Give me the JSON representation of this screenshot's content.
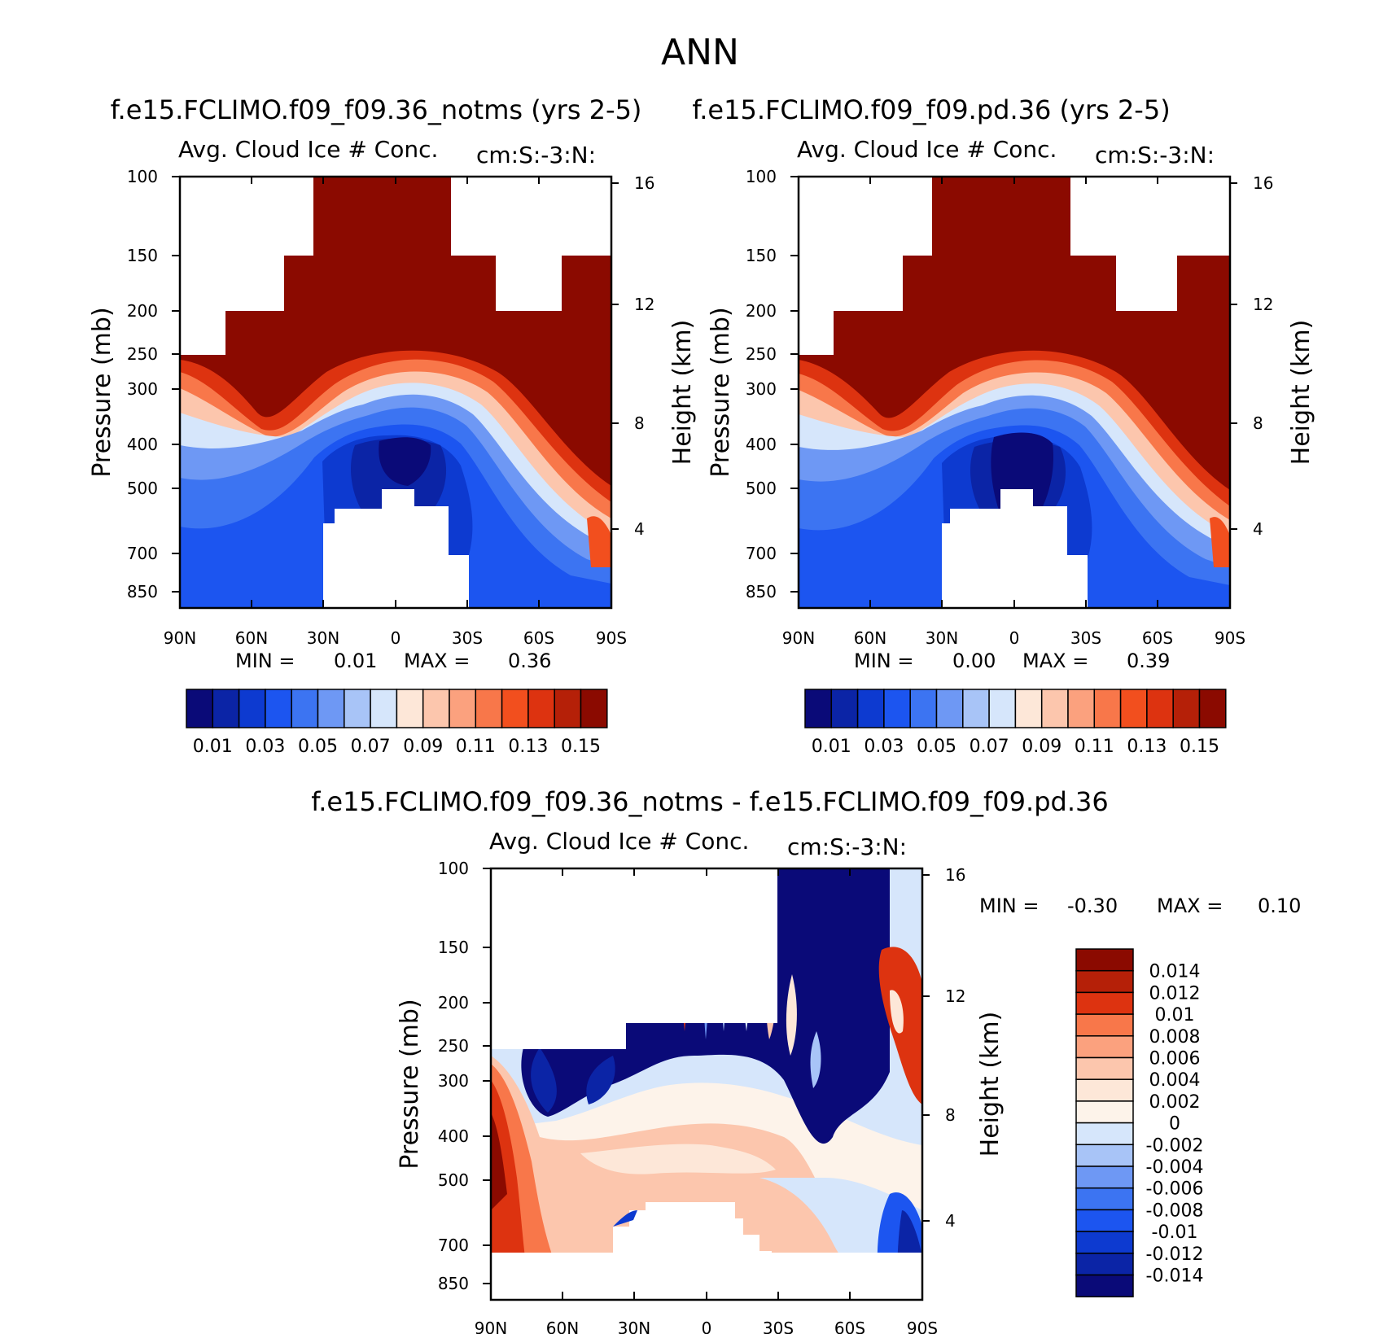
{
  "figure_title": "ANN",
  "chart_data": [
    {
      "type": "heatmap",
      "title": "f.e15.FCLIMO.f09_f09.36_notms (yrs 2-5)",
      "subtitle": "Avg. Cloud Ice # Conc.",
      "units": "cm:S:-3:N:",
      "ylabel": "Pressure (mb)",
      "ylabel_right": "Height (km)",
      "x_ticks": [
        "90N",
        "60N",
        "30N",
        "0",
        "30S",
        "60S",
        "90S"
      ],
      "y_ticks": [
        "100",
        "150",
        "200",
        "250",
        "300",
        "400",
        "500",
        "700",
        "850"
      ],
      "y_right_ticks": [
        "16",
        "12",
        "8",
        "4"
      ],
      "min_label": "MIN =",
      "min": "0.01",
      "max_label": "MAX =",
      "max": "0.36",
      "colorbar_labels": [
        "0.01",
        "0.03",
        "0.05",
        "0.07",
        "0.09",
        "0.11",
        "0.13",
        "0.15"
      ],
      "colors": [
        "#0a0a78",
        "#0b24a6",
        "#0d3ad0",
        "#1c55f0",
        "#3c74f2",
        "#6e98f4",
        "#a8c4f7",
        "#d6e6fb",
        "#fde7d8",
        "#fcc6ad",
        "#fba17e",
        "#f8774a",
        "#f24f1e",
        "#dd3310",
        "#b52008",
        "#8b0a00"
      ]
    },
    {
      "type": "heatmap",
      "title": "f.e15.FCLIMO.f09_f09.pd.36 (yrs 2-5)",
      "subtitle": "Avg. Cloud Ice # Conc.",
      "units": "cm:S:-3:N:",
      "ylabel": "Pressure (mb)",
      "ylabel_right": "Height (km)",
      "x_ticks": [
        "90N",
        "60N",
        "30N",
        "0",
        "30S",
        "60S",
        "90S"
      ],
      "y_ticks": [
        "100",
        "150",
        "200",
        "250",
        "300",
        "400",
        "500",
        "700",
        "850"
      ],
      "y_right_ticks": [
        "16",
        "12",
        "8",
        "4"
      ],
      "min_label": "MIN =",
      "min": "0.00",
      "max_label": "MAX =",
      "max": "0.39",
      "colorbar_labels": [
        "0.01",
        "0.03",
        "0.05",
        "0.07",
        "0.09",
        "0.11",
        "0.13",
        "0.15"
      ],
      "colors": [
        "#0a0a78",
        "#0b24a6",
        "#0d3ad0",
        "#1c55f0",
        "#3c74f2",
        "#6e98f4",
        "#a8c4f7",
        "#d6e6fb",
        "#fde7d8",
        "#fcc6ad",
        "#fba17e",
        "#f8774a",
        "#f24f1e",
        "#dd3310",
        "#b52008",
        "#8b0a00"
      ]
    },
    {
      "type": "heatmap",
      "title": "f.e15.FCLIMO.f09_f09.36_notms - f.e15.FCLIMO.f09_f09.pd.36",
      "subtitle": "Avg. Cloud Ice # Conc.",
      "units": "cm:S:-3:N:",
      "ylabel": "Pressure (mb)",
      "ylabel_right": "Height (km)",
      "x_ticks": [
        "90N",
        "60N",
        "30N",
        "0",
        "30S",
        "60S",
        "90S"
      ],
      "y_ticks": [
        "100",
        "150",
        "200",
        "250",
        "300",
        "400",
        "500",
        "700",
        "850"
      ],
      "y_right_ticks": [
        "16",
        "12",
        "8",
        "4"
      ],
      "min_label": "MIN =",
      "min": "-0.30",
      "max_label": "MAX =",
      "max": "0.10",
      "colorbar_labels": [
        "0.014",
        "0.012",
        "0.01",
        "0.008",
        "0.006",
        "0.004",
        "0.002",
        "0",
        "-0.002",
        "-0.004",
        "-0.006",
        "-0.008",
        "-0.01",
        "-0.012",
        "-0.014"
      ],
      "colors": [
        "#8b0a00",
        "#b52008",
        "#dd3310",
        "#f8774a",
        "#fba17e",
        "#fcc6ad",
        "#fde7d8",
        "#fdf3ea",
        "#d6e6fb",
        "#a8c4f7",
        "#6e98f4",
        "#3c74f2",
        "#1c55f0",
        "#0d3ad0",
        "#0b24a6",
        "#0a0a78"
      ]
    }
  ]
}
